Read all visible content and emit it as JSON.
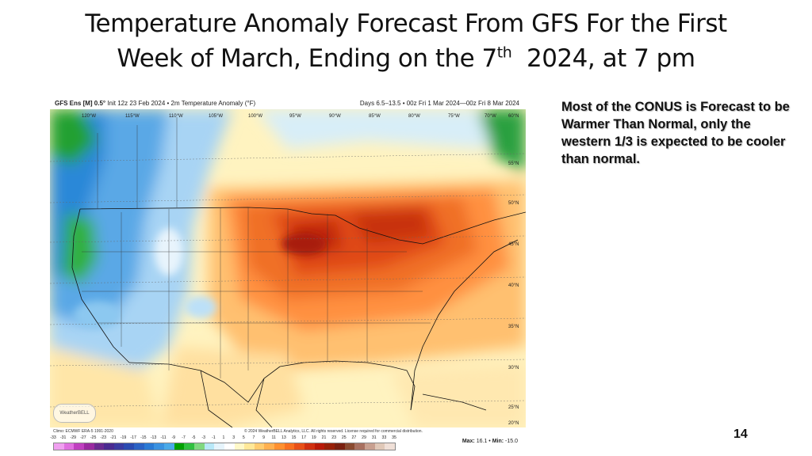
{
  "slide": {
    "title_line1": "Temperature Anomaly Forecast From GFS For the First",
    "title_line2_pre": "Week of March, Ending on the 7",
    "title_line2_sup": "th",
    "title_line2_post": "  2024, at 7 pm",
    "note": "Most of the CONUS is Forecast to be Warmer Than Normal, only the western 1/3 is expected to be cooler than normal.",
    "page_number": "14"
  },
  "map": {
    "header_model": "GFS Ens [M] 0.5°",
    "header_init": " Init 12z 23 Feb 2024 • 2m Temperature Anomaly (°F)",
    "header_right": "Days 6.5–13.5 • 00z Fri 1 Mar 2024—00z Fri 8 Mar 2024",
    "lon_labels": [
      "120°W",
      "115°W",
      "110°W",
      "105°W",
      "100°W",
      "95°W",
      "90°W",
      "85°W",
      "80°W",
      "75°W",
      "70°W",
      "60°N"
    ],
    "lat_labels": [
      "55°N",
      "50°N",
      "45°N",
      "40°N",
      "35°N",
      "30°N",
      "25°N",
      "20°N"
    ],
    "footer_climo": "Climo: ECMWF ERA-5 1991-2020",
    "footer_copyright": "© 2024 WeatherBELL Analytics, LLC. All rights reserved. License required for commercial distribution.",
    "logo_text": "WeatherBELL",
    "max_label": "Max:",
    "max_value": "16.1",
    "min_label": "Min:",
    "min_value": "-15.0",
    "scale_labels": [
      "-33",
      "-31",
      "-29",
      "-27",
      "-25",
      "-23",
      "-21",
      "-19",
      "-17",
      "-15",
      "-13",
      "-11",
      "-9",
      "-7",
      "-5",
      "-3",
      "-1",
      "1",
      "3",
      "5",
      "7",
      "9",
      "11",
      "13",
      "15",
      "17",
      "19",
      "21",
      "23",
      "25",
      "27",
      "29",
      "31",
      "33",
      "35"
    ],
    "scale_colors": [
      "#f0a0f0",
      "#e070e0",
      "#c040c0",
      "#9a2aa0",
      "#6a2a90",
      "#4a2a90",
      "#3a3aa0",
      "#2a4ab0",
      "#2a62c4",
      "#2a7ad4",
      "#3a92e0",
      "#4aaae8",
      "#00a000",
      "#30c040",
      "#80d880",
      "#b8e8f8",
      "#e6f4fc",
      "#ffffff",
      "#fff8c8",
      "#ffe898",
      "#ffcc70",
      "#ffb050",
      "#ff9030",
      "#f87020",
      "#e85018",
      "#d03010",
      "#b81a08",
      "#982008",
      "#7a2010",
      "#8a4a30",
      "#a87060",
      "#c8a090",
      "#e0c8b8",
      "#f0e0d8"
    ]
  }
}
